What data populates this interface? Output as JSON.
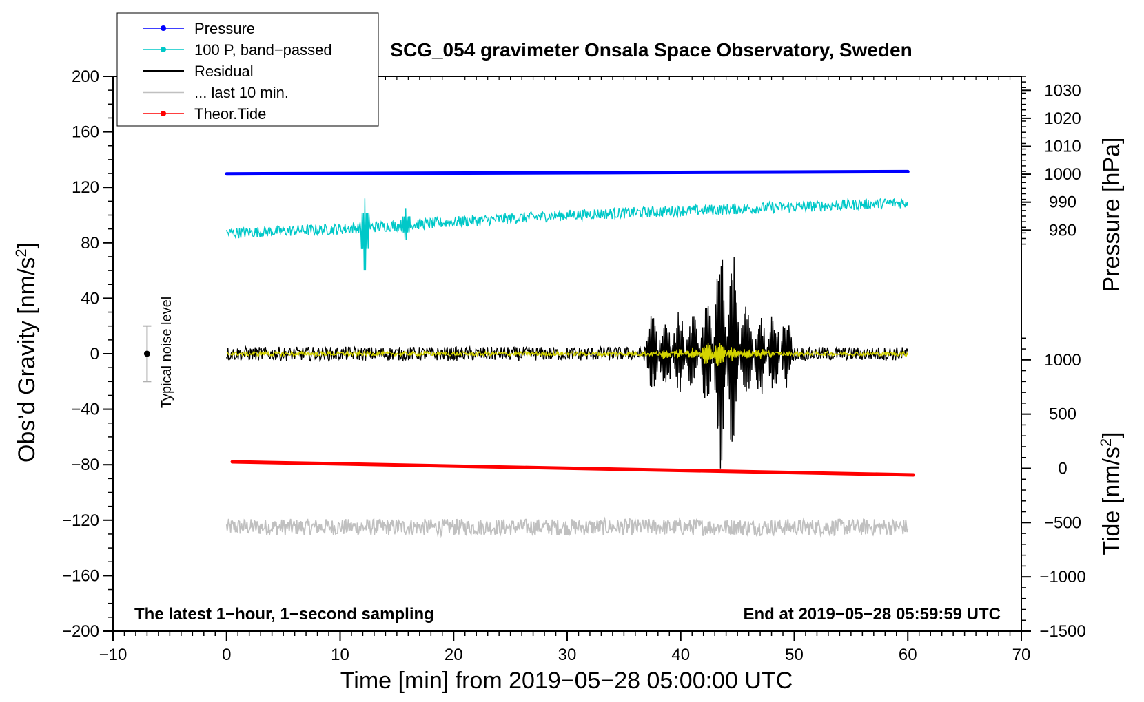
{
  "chart_data": {
    "type": "line",
    "title": "SCG_054 gravimeter Onsala Space Observatory, Sweden",
    "xlabel": "Time [min] from 2019−05−28 05:00:00 UTC",
    "ylabel_left_main": "Obs’d Gravity [nm/s",
    "ylabel_left_sup": "2",
    "ylabel_left_close": "]",
    "ylabel_right_pressure": "Pressure [hPa]",
    "ylabel_right_tide_main": "Tide [nm/s",
    "ylabel_right_tide_sup": "2",
    "ylabel_right_tide_close": "]",
    "xlim": [
      -10,
      70
    ],
    "ylim_left": [
      -200,
      200
    ],
    "ylim_pressure": [
      935,
      1035
    ],
    "ylim_tide": [
      -1500,
      1500
    ],
    "x_ticks": [
      -10,
      0,
      10,
      20,
      30,
      40,
      50,
      60,
      70
    ],
    "x_tick_labels": [
      "−10",
      "0",
      "10",
      "20",
      "30",
      "40",
      "50",
      "60",
      "70"
    ],
    "y_ticks_left": [
      -200,
      -160,
      -120,
      -80,
      -40,
      0,
      40,
      80,
      120,
      160,
      200
    ],
    "y_tick_labels_left": [
      "−200",
      "−160",
      "−120",
      "−80",
      "−40",
      "0",
      "40",
      "80",
      "120",
      "160",
      "200"
    ],
    "y_ticks_pressure": [
      980,
      990,
      1000,
      1010,
      1020,
      1030
    ],
    "y_tick_labels_pressure": [
      "980",
      "990",
      "1000",
      "1010",
      "1020",
      "1030"
    ],
    "y_ticks_tide": [
      -1500,
      -1000,
      -500,
      0,
      500,
      1000
    ],
    "y_tick_labels_tide": [
      "−1500",
      "−1000",
      "−500",
      "0",
      "500",
      "1000"
    ],
    "legend": [
      {
        "label": "Pressure",
        "color": "#0000ff",
        "marker": true
      },
      {
        "label": "100 P, band−passed",
        "color": "#00c8c8",
        "marker": true
      },
      {
        "label": "Residual",
        "color": "#000000",
        "marker": false
      },
      {
        "label": "... last 10 min.",
        "color": "#c0c0c0",
        "marker": false
      },
      {
        "label": "Theor.Tide",
        "color": "#ff0000",
        "marker": true
      }
    ],
    "annotations": {
      "left_note": "The latest 1−hour, 1−second sampling",
      "right_note": "End at 2019−05−28 05:59:59 UTC",
      "noise_label": "Typical noise level",
      "noise_level": {
        "x": -7,
        "center": 0,
        "half_range": 20
      }
    },
    "series": [
      {
        "name": "Pressure",
        "axis": "pressure",
        "color": "#0000ff",
        "x": [
          0,
          60
        ],
        "values": [
          1000.1,
          1000.9
        ]
      },
      {
        "name": "100 P, band−passed",
        "axis": "left",
        "color": "#00c8c8",
        "x": [
          0,
          10,
          20,
          30,
          40,
          50,
          60
        ],
        "values": [
          87,
          90,
          95,
          100,
          103,
          106,
          109
        ],
        "noise": 4,
        "spikes": [
          [
            12.2,
            112,
            60
          ],
          [
            15.8,
            105,
            82
          ]
        ]
      },
      {
        "name": "Residual",
        "axis": "left",
        "color": "#000000",
        "x": [
          0,
          60
        ],
        "values": [
          0,
          0
        ],
        "noise": 5,
        "event": {
          "x": 44,
          "amplitude": 95,
          "start": 37,
          "end": 50
        }
      },
      {
        "name": "Residual (filtered)",
        "axis": "left",
        "color": "#d4d400",
        "x": [
          0,
          60
        ],
        "values": [
          0,
          0
        ],
        "noise": 1.5,
        "event": {
          "x": 43,
          "amplitude": 10,
          "start": 38,
          "end": 48
        }
      },
      {
        "name": "... last 10 min.",
        "axis": "left",
        "color": "#c0c0c0",
        "x": [
          0,
          60
        ],
        "values": [
          -125,
          -125
        ],
        "noise": 6
      },
      {
        "name": "Theor.Tide",
        "axis": "tide",
        "color": "#ff0000",
        "x": [
          0.5,
          60.5
        ],
        "values": [
          60,
          -60
        ]
      }
    ]
  }
}
